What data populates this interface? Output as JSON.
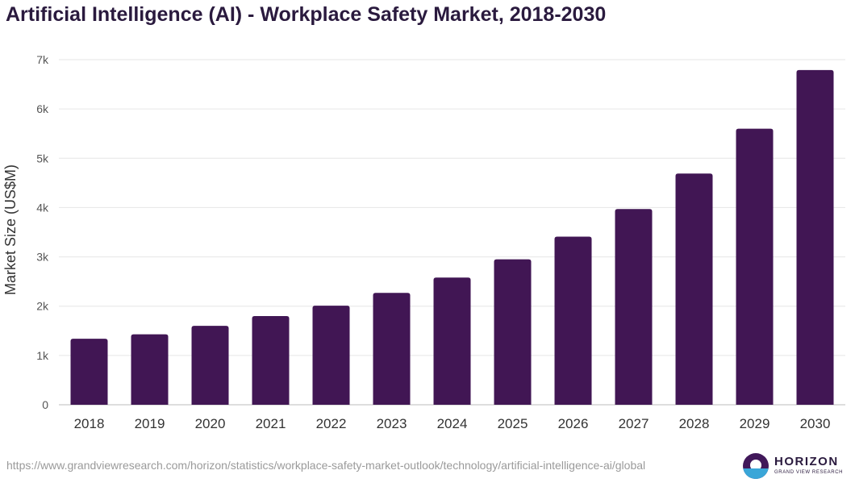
{
  "chart_data": {
    "type": "bar",
    "title": "Artificial Intelligence (AI) - Workplace Safety Market, 2018-2030",
    "xlabel": "",
    "ylabel": "Market Size (US$M)",
    "categories": [
      "2018",
      "2019",
      "2020",
      "2021",
      "2022",
      "2023",
      "2024",
      "2025",
      "2026",
      "2027",
      "2028",
      "2029",
      "2030"
    ],
    "values": [
      1340,
      1430,
      1600,
      1800,
      2010,
      2270,
      2580,
      2950,
      3410,
      3970,
      4690,
      5600,
      6790
    ],
    "ylim": [
      0,
      7000
    ],
    "yticks": [
      {
        "value": 0,
        "label": "0"
      },
      {
        "value": 1000,
        "label": "1k"
      },
      {
        "value": 2000,
        "label": "2k"
      },
      {
        "value": 3000,
        "label": "3k"
      },
      {
        "value": 4000,
        "label": "4k"
      },
      {
        "value": 5000,
        "label": "5k"
      },
      {
        "value": 6000,
        "label": "6k"
      },
      {
        "value": 7000,
        "label": "7k"
      }
    ],
    "grid": true,
    "bar_color": "#411654"
  },
  "source_url": "https://www.grandviewresearch.com/horizon/statistics/workplace-safety-market-outlook/technology/artificial-intelligence-ai/global",
  "logo": {
    "name": "HORIZON",
    "subtitle": "GRAND VIEW RESEARCH"
  }
}
